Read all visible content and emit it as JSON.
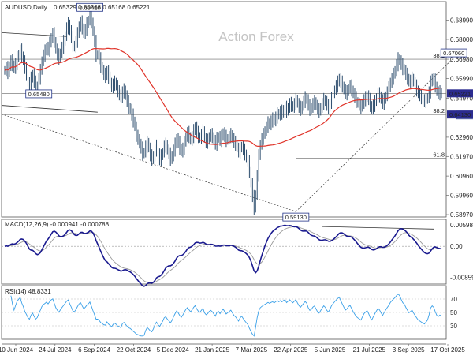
{
  "chart_data": {
    "type": "line",
    "symbol": "AUDUSD,Daily",
    "ohlc_text": "0.65329 0.65368 0.65168 0.65221",
    "watermark": "Action Forex",
    "price_axis": {
      "ticks": [
        0.6899,
        0.68,
        0.6698,
        0.6599,
        0.6497,
        0.6296,
        0.6197,
        0.6096,
        0.5996,
        0.5897
      ],
      "labels": [
        "0.68990",
        "0.68000",
        "0.66980",
        "0.65990",
        "0.64970",
        "0.62960",
        "0.61970",
        "0.60960",
        "0.59960",
        "0.58970"
      ],
      "range": [
        0.5885,
        0.6995
      ]
    },
    "x_labels": [
      "10 Jun 2024",
      "24 Jul 2024",
      "6 Sep 2024",
      "22 Oct 2024",
      "5 Dec 2024",
      "21 Jan 2025",
      "7 Mar 2025",
      "22 Apr 2025",
      "5 Jun 2025",
      "21 Jul 2025",
      "3 Sep 2025",
      "17 Oct 2025"
    ],
    "price_badges": [
      {
        "value": 0.65221,
        "text": "0.65221",
        "bg": "#2b2b8f"
      },
      {
        "value": 0.6413,
        "text": "0.64130",
        "bg": "#2b2b8f"
      }
    ],
    "price_annotations": [
      {
        "text": "0.69410",
        "bar": 55,
        "price": 0.6941
      },
      {
        "text": "0.65480",
        "bar": 22,
        "price": 0.6548
      },
      {
        "text": "0.59130",
        "bar": 188,
        "price": 0.5913
      },
      {
        "text": "0.67060",
        "bar": 290,
        "price": 0.6706
      },
      {
        "text": "0.64390",
        "bar": 300,
        "price": 0.6439
      }
    ],
    "fib_levels": [
      {
        "label": "38.2",
        "price": 0.6698
      },
      {
        "label": "38.2",
        "price": 0.6413
      },
      {
        "label": "61.8",
        "price": 0.6188
      }
    ],
    "hlines": [
      0.6698,
      0.65221,
      0.6413
    ],
    "close": [
      0.664,
      0.6655,
      0.663,
      0.6665,
      0.669,
      0.667,
      0.665,
      0.6675,
      0.6705,
      0.6725,
      0.6745,
      0.6715,
      0.669,
      0.665,
      0.662,
      0.658,
      0.656,
      0.66,
      0.662,
      0.658,
      0.6545,
      0.656,
      0.66,
      0.664,
      0.669,
      0.672,
      0.674,
      0.676,
      0.6745,
      0.678,
      0.681,
      0.683,
      0.679,
      0.675,
      0.672,
      0.67,
      0.673,
      0.676,
      0.679,
      0.682,
      0.686,
      0.688,
      0.6845,
      0.681,
      0.677,
      0.676,
      0.679,
      0.683,
      0.687,
      0.689,
      0.686,
      0.683,
      0.685,
      0.688,
      0.69,
      0.693,
      0.689,
      0.684,
      0.679,
      0.672,
      0.672,
      0.67,
      0.666,
      0.664,
      0.662,
      0.661,
      0.664,
      0.66,
      0.658,
      0.655,
      0.657,
      0.658,
      0.656,
      0.653,
      0.652,
      0.65,
      0.653,
      0.654,
      0.651,
      0.648,
      0.645,
      0.644,
      0.641,
      0.638,
      0.635,
      0.63,
      0.629,
      0.626,
      0.624,
      0.621,
      0.622,
      0.625,
      0.627,
      0.624,
      0.62,
      0.618,
      0.62,
      0.623,
      0.625,
      0.621,
      0.618,
      0.62,
      0.622,
      0.625,
      0.626,
      0.623,
      0.621,
      0.618,
      0.62,
      0.623,
      0.626,
      0.629,
      0.627,
      0.624,
      0.622,
      0.624,
      0.627,
      0.63,
      0.632,
      0.63,
      0.628,
      0.63,
      0.633,
      0.635,
      0.632,
      0.63,
      0.629,
      0.631,
      0.633,
      0.629,
      0.627,
      0.628,
      0.63,
      0.631,
      0.63,
      0.628,
      0.626,
      0.629,
      0.63,
      0.628,
      0.63,
      0.632,
      0.63,
      0.628,
      0.629,
      0.63,
      0.631,
      0.629,
      0.627,
      0.626,
      0.624,
      0.622,
      0.624,
      0.625,
      0.623,
      0.621,
      0.619,
      0.617,
      0.612,
      0.606,
      0.599,
      0.593,
      0.6,
      0.61,
      0.62,
      0.626,
      0.629,
      0.631,
      0.633,
      0.635,
      0.637,
      0.636,
      0.638,
      0.639,
      0.638,
      0.64,
      0.642,
      0.641,
      0.643,
      0.642,
      0.644,
      0.645,
      0.643,
      0.645,
      0.647,
      0.646,
      0.645,
      0.647,
      0.649,
      0.647,
      0.645,
      0.644,
      0.646,
      0.648,
      0.65,
      0.649,
      0.646,
      0.644,
      0.645,
      0.647,
      0.648,
      0.646,
      0.644,
      0.643,
      0.645,
      0.647,
      0.649,
      0.648,
      0.646,
      0.645,
      0.647,
      0.65,
      0.652,
      0.654,
      0.656,
      0.658,
      0.66,
      0.658,
      0.656,
      0.654,
      0.652,
      0.653,
      0.655,
      0.656,
      0.654,
      0.652,
      0.65,
      0.648,
      0.647,
      0.646,
      0.645,
      0.647,
      0.649,
      0.65,
      0.651,
      0.649,
      0.646,
      0.644,
      0.646,
      0.648,
      0.65,
      0.652,
      0.651,
      0.649,
      0.647,
      0.649,
      0.651,
      0.653,
      0.655,
      0.658,
      0.66,
      0.662,
      0.664,
      0.667,
      0.67,
      0.669,
      0.667,
      0.665,
      0.664,
      0.662,
      0.66,
      0.658,
      0.659,
      0.66,
      0.658,
      0.656,
      0.654,
      0.652,
      0.651,
      0.65,
      0.649,
      0.648,
      0.649,
      0.65,
      0.653,
      0.658,
      0.66,
      0.659,
      0.656,
      0.653,
      0.652,
      0.653,
      0.652
    ],
    "ma_period": 50,
    "macd": {
      "label": "MACD(12,26,9) -0.000941 -0.000788",
      "axis_ticks": [
        0.005981,
        0.0,
        -0.00859
      ],
      "axis_labels": [
        "0.005981",
        "0.00",
        "-0.00859"
      ],
      "range": [
        -0.0105,
        0.0075
      ]
    },
    "rsi": {
      "label": "RSI(14) 48.8331",
      "axis_ticks": [
        70,
        50,
        30
      ],
      "axis_labels": [
        "70",
        "50",
        "30"
      ],
      "range": [
        10,
        90
      ],
      "period": 14
    },
    "colors": {
      "price": "#2f4f6f",
      "ma": "#e0342a",
      "macd": "#1a1a8f",
      "signal": "#9a9a9a",
      "rsi": "#3aa0e8",
      "grid": "#d9d9d9",
      "badge": "#2b2b8f",
      "text": "#222222"
    }
  }
}
